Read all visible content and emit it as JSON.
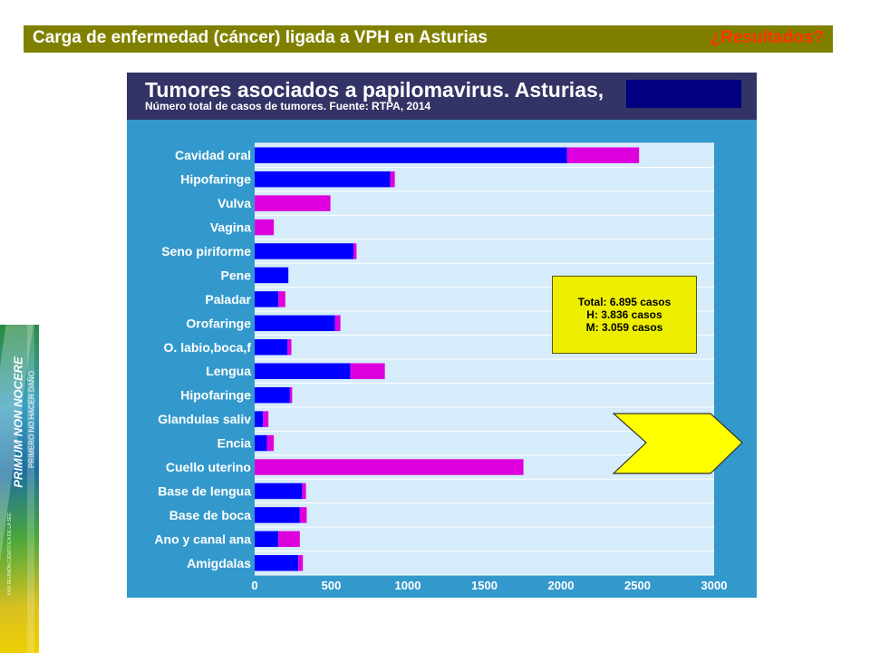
{
  "slide": {
    "title": "Carga de enfermedad (cáncer) ligada a VPH en Asturias",
    "subtitle": "¿Resultados?",
    "banner_main": "PRIMUM NON NOCERE",
    "banner_sub": "PRIMERO NO HACER DAÑO",
    "banner_fine": "XXIII REUNIÓN CIENTÍFICA DE LA SEE"
  },
  "colors": {
    "header_bg": "#808000",
    "subtitle": "#ff3300",
    "panel_bg": "#3399cc",
    "plot_bg": "#d6ecfa",
    "men": "#0000ff",
    "women": "#dd00dd",
    "callout": "#eeee00"
  },
  "totals": {
    "total": "Total: 6.895 casos",
    "men": "H: 3.836 casos",
    "women": "M: 3.059 casos"
  },
  "chart_data": {
    "type": "bar",
    "orientation": "horizontal",
    "stacked": true,
    "title": "Tumores asociados a papilomavirus. Asturias,",
    "subtitle": "Número total de casos de tumores. Fuente: RTPA, 2014",
    "categories": [
      "Cavidad oral",
      "Hipofaringe",
      "Vulva",
      "Vagina",
      "Seno piriforme",
      "Pene",
      "Paladar",
      "Orofaringe",
      "O. labio,boca,f",
      "Lengua",
      "Hipofaringe",
      "Glandulas saliv",
      "Encia",
      "Cuello uterino",
      "Base de lengua",
      "Base de boca",
      "Ano y canal ana",
      "Amigdalas"
    ],
    "series": [
      {
        "values": [
          2040,
          885,
          0,
          0,
          645,
          220,
          155,
          525,
          215,
          625,
          230,
          55,
          80,
          0,
          310,
          295,
          155,
          285
        ],
        "color": "#0000ff"
      },
      {
        "values": [
          470,
          30,
          495,
          125,
          20,
          0,
          45,
          35,
          25,
          225,
          15,
          35,
          45,
          1755,
          25,
          45,
          140,
          30
        ],
        "color": "#dd00dd"
      }
    ],
    "xlim": [
      0,
      3000
    ],
    "xticks": [
      0,
      500,
      1000,
      1500,
      2000,
      2500,
      3000
    ],
    "grid": true
  }
}
